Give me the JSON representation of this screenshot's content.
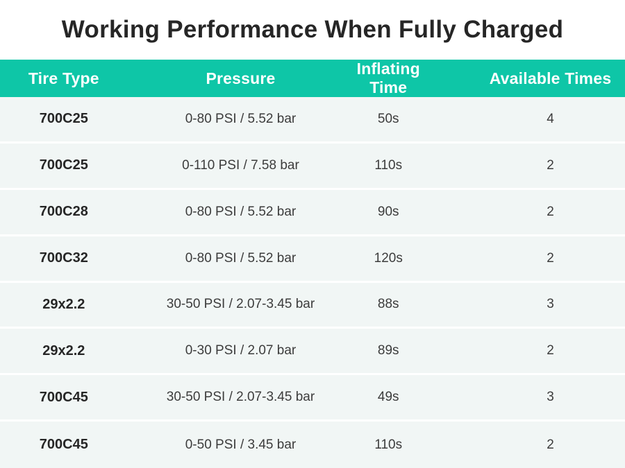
{
  "page": {
    "title": "Working Performance When Fully Charged"
  },
  "colors": {
    "header_bg": "#0ec6a7",
    "header_text": "#ffffff",
    "row_bg": "#f1f6f5",
    "divider": "#ffffff",
    "title_text": "#262626",
    "cell_text": "#3c3c3c",
    "tire_text": "#262626"
  },
  "chart_data": {
    "type": "table",
    "title": "Working Performance When Fully Charged",
    "columns": [
      "Tire Type",
      "Pressure",
      "Inflating Time",
      "Available Times"
    ],
    "rows": [
      [
        "700C25",
        "0-80 PSI / 5.52 bar",
        "50s",
        "4"
      ],
      [
        "700C25",
        "0-110 PSI / 7.58 bar",
        "110s",
        "2"
      ],
      [
        "700C28",
        "0-80 PSI / 5.52 bar",
        "90s",
        "2"
      ],
      [
        "700C32",
        "0-80 PSI / 5.52 bar",
        "120s",
        "2"
      ],
      [
        "29x2.2",
        "30-50 PSI / 2.07-3.45 bar",
        "88s",
        "3"
      ],
      [
        "29x2.2",
        "0-30 PSI / 2.07 bar",
        "89s",
        "2"
      ],
      [
        "700C45",
        "30-50 PSI / 2.07-3.45 bar",
        "49s",
        "3"
      ],
      [
        "700C45",
        "0-50 PSI / 3.45 bar",
        "110s",
        "2"
      ]
    ]
  }
}
